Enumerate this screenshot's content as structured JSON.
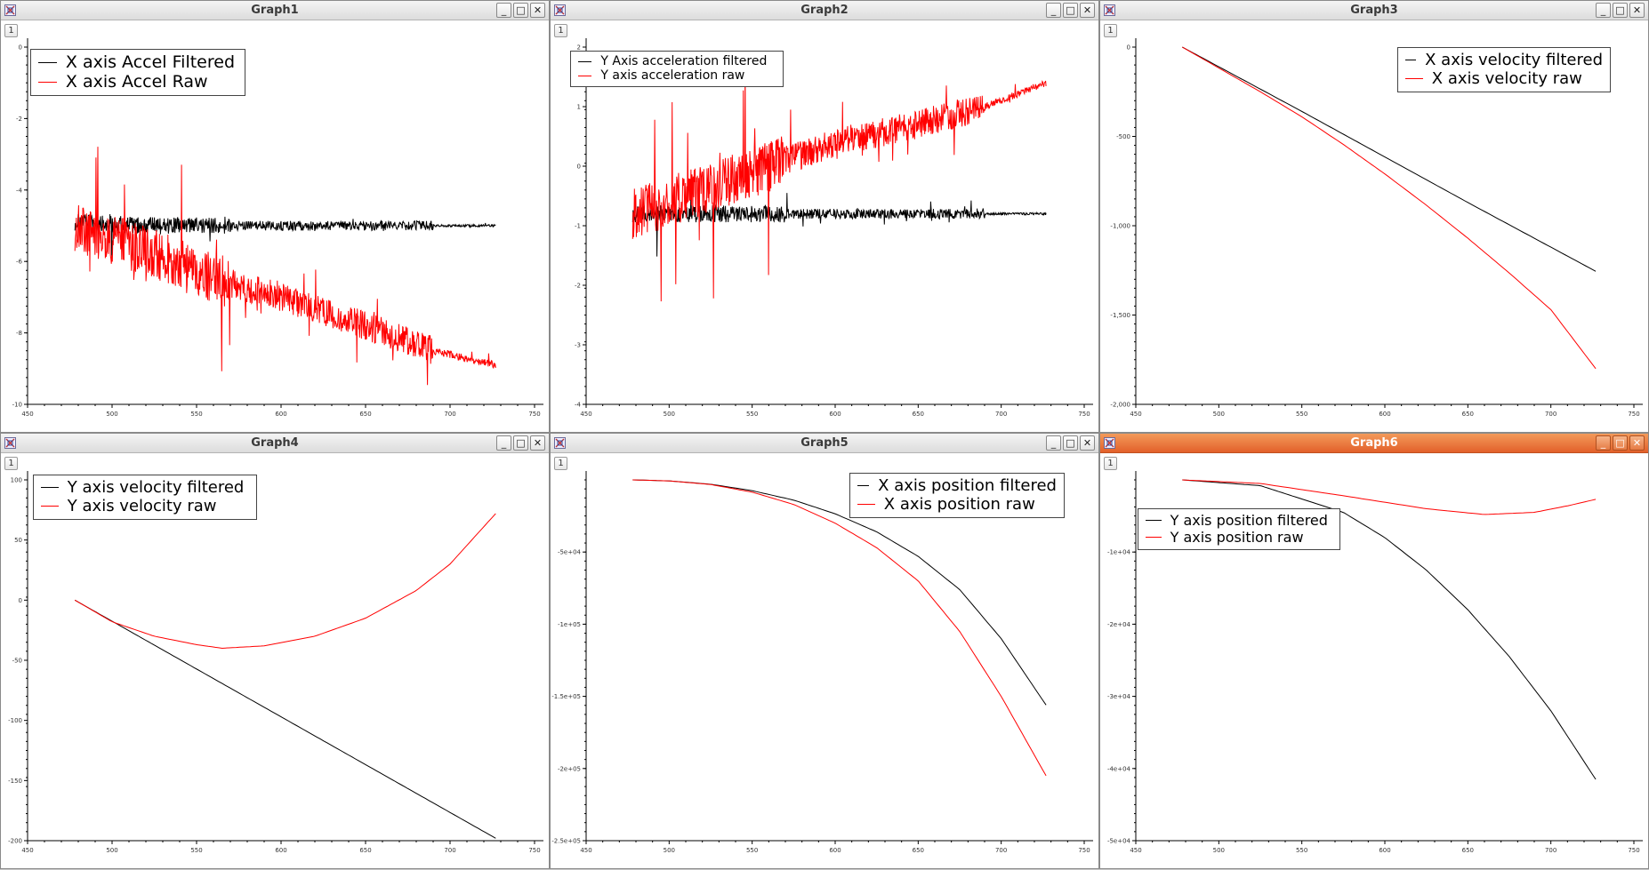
{
  "windows": [
    {
      "title": "Graph1",
      "page": "1",
      "active": false,
      "chart_data": {
        "type": "line",
        "xlim": [
          450,
          750
        ],
        "ylim": [
          -10,
          0
        ],
        "xticks": [
          "450",
          "500",
          "550",
          "600",
          "650",
          "700",
          "750"
        ],
        "yticks": [
          "0",
          "-2",
          "-4",
          "-6",
          "-8",
          "-10"
        ],
        "series": [
          {
            "name": "X axis Accel Filtered",
            "color": "#000000",
            "noise": "high",
            "points": [
              [
                478,
                -4.9
              ],
              [
                520,
                -5.0
              ],
              [
                570,
                -5.0
              ],
              [
                650,
                -5.0
              ],
              [
                690,
                -5.0
              ],
              [
                727,
                -5.0
              ]
            ]
          },
          {
            "name": "X axis Accel Raw",
            "color": "#ff0000",
            "noise": "high",
            "points": [
              [
                478,
                -5.0
              ],
              [
                520,
                -5.7
              ],
              [
                545,
                -6.2
              ],
              [
                570,
                -6.6
              ],
              [
                600,
                -7.0
              ],
              [
                650,
                -7.8
              ],
              [
                690,
                -8.5
              ],
              [
                727,
                -8.9
              ]
            ]
          }
        ],
        "legend": "top-left"
      }
    },
    {
      "title": "Graph2",
      "page": "1",
      "active": false,
      "chart_data": {
        "type": "line",
        "xlim": [
          450,
          750
        ],
        "ylim": [
          -4,
          2
        ],
        "xticks": [
          "450",
          "500",
          "550",
          "600",
          "650",
          "700",
          "750"
        ],
        "yticks": [
          "2",
          "1",
          "0",
          "-1",
          "-2",
          "-3",
          "-4"
        ],
        "series": [
          {
            "name": "Y Axis acceleration filtered",
            "color": "#000000",
            "noise": "high",
            "points": [
              [
                478,
                -0.8
              ],
              [
                570,
                -0.8
              ],
              [
                690,
                -0.8
              ],
              [
                727,
                -0.8
              ]
            ]
          },
          {
            "name": "Y axis acceleration raw",
            "color": "#ff0000",
            "noise": "high",
            "points": [
              [
                478,
                -0.8
              ],
              [
                520,
                -0.4
              ],
              [
                570,
                0.1
              ],
              [
                600,
                0.4
              ],
              [
                650,
                0.7
              ],
              [
                690,
                1.0
              ],
              [
                727,
                1.4
              ]
            ]
          }
        ],
        "legend": "top-left"
      }
    },
    {
      "title": "Graph3",
      "page": "1",
      "active": false,
      "chart_data": {
        "type": "line",
        "xlim": [
          450,
          750
        ],
        "ylim": [
          -2000,
          0
        ],
        "xticks": [
          "450",
          "500",
          "550",
          "600",
          "650",
          "700",
          "750"
        ],
        "yticks": [
          "0",
          "-500",
          "-1,000",
          "-1,500",
          "-2,000"
        ],
        "series": [
          {
            "name": "X axis velocity filtered",
            "color": "#000000",
            "noise": "none",
            "points": [
              [
                478,
                0
              ],
              [
                550,
                -360
              ],
              [
                600,
                -615
              ],
              [
                650,
                -870
              ],
              [
                700,
                -1120
              ],
              [
                727,
                -1255
              ]
            ]
          },
          {
            "name": "X axis velocity raw",
            "color": "#ff0000",
            "noise": "none",
            "points": [
              [
                478,
                0
              ],
              [
                525,
                -250
              ],
              [
                550,
                -390
              ],
              [
                575,
                -545
              ],
              [
                600,
                -710
              ],
              [
                625,
                -885
              ],
              [
                650,
                -1070
              ],
              [
                675,
                -1265
              ],
              [
                700,
                -1470
              ],
              [
                727,
                -1800
              ]
            ]
          }
        ],
        "legend": "top-right"
      }
    },
    {
      "title": "Graph4",
      "page": "1",
      "active": false,
      "chart_data": {
        "type": "line",
        "xlim": [
          450,
          750
        ],
        "ylim": [
          -200,
          100
        ],
        "xticks": [
          "450",
          "500",
          "550",
          "600",
          "650",
          "700",
          "750"
        ],
        "yticks": [
          "100",
          "50",
          "0",
          "-50",
          "-100",
          "-150",
          "-200"
        ],
        "series": [
          {
            "name": "Y axis velocity filtered",
            "color": "#000000",
            "noise": "none",
            "points": [
              [
                478,
                0
              ],
              [
                727,
                -198
              ]
            ]
          },
          {
            "name": "Y axis velocity raw",
            "color": "#ff0000",
            "noise": "none",
            "points": [
              [
                478,
                0
              ],
              [
                500,
                -18
              ],
              [
                525,
                -30
              ],
              [
                550,
                -37
              ],
              [
                565,
                -40
              ],
              [
                590,
                -38
              ],
              [
                620,
                -30
              ],
              [
                650,
                -15
              ],
              [
                680,
                8
              ],
              [
                700,
                30
              ],
              [
                727,
                72
              ]
            ]
          }
        ],
        "legend": "top-left"
      }
    },
    {
      "title": "Graph5",
      "page": "1",
      "active": false,
      "chart_data": {
        "type": "line",
        "xlim": [
          450,
          750
        ],
        "ylim": [
          -250000,
          0
        ],
        "xticks": [
          "450",
          "500",
          "550",
          "600",
          "650",
          "700",
          "750"
        ],
        "yticks": [
          "-5e+04",
          "-1e+05",
          "-1.5e+05",
          "-2e+05",
          "-2.5e+05"
        ],
        "series": [
          {
            "name": "X axis position filtered",
            "color": "#000000",
            "noise": "none",
            "points": [
              [
                478,
                0
              ],
              [
                500,
                -700
              ],
              [
                525,
                -3000
              ],
              [
                550,
                -7500
              ],
              [
                575,
                -14000
              ],
              [
                600,
                -23500
              ],
              [
                625,
                -36000
              ],
              [
                650,
                -53000
              ],
              [
                675,
                -76000
              ],
              [
                700,
                -110000
              ],
              [
                727,
                -156000
              ]
            ]
          },
          {
            "name": "X axis position raw",
            "color": "#ff0000",
            "noise": "none",
            "points": [
              [
                478,
                0
              ],
              [
                500,
                -700
              ],
              [
                525,
                -3200
              ],
              [
                550,
                -8500
              ],
              [
                575,
                -17000
              ],
              [
                600,
                -30000
              ],
              [
                625,
                -47000
              ],
              [
                650,
                -70000
              ],
              [
                675,
                -105000
              ],
              [
                700,
                -150000
              ],
              [
                727,
                -205000
              ]
            ]
          }
        ],
        "legend": "top-right"
      }
    },
    {
      "title": "Graph6",
      "page": "1",
      "active": true,
      "chart_data": {
        "type": "line",
        "xlim": [
          450,
          750
        ],
        "ylim": [
          -50000,
          0
        ],
        "xticks": [
          "450",
          "500",
          "550",
          "600",
          "650",
          "700",
          "750"
        ],
        "yticks": [
          "-1e+04",
          "-2e+04",
          "-3e+04",
          "-4e+04",
          "-5e+04"
        ],
        "series": [
          {
            "name": "Y axis position filtered",
            "color": "#000000",
            "noise": "none",
            "points": [
              [
                478,
                0
              ],
              [
                525,
                -800
              ],
              [
                575,
                -4500
              ],
              [
                600,
                -8000
              ],
              [
                625,
                -12500
              ],
              [
                650,
                -18000
              ],
              [
                675,
                -24500
              ],
              [
                700,
                -32000
              ],
              [
                727,
                -41500
              ]
            ]
          },
          {
            "name": "Y axis position raw",
            "color": "#ff0000",
            "noise": "none",
            "points": [
              [
                478,
                0
              ],
              [
                525,
                -500
              ],
              [
                575,
                -2200
              ],
              [
                625,
                -4000
              ],
              [
                660,
                -4800
              ],
              [
                690,
                -4500
              ],
              [
                710,
                -3600
              ],
              [
                727,
                -2700
              ]
            ]
          }
        ],
        "legend": "top-left"
      }
    }
  ]
}
